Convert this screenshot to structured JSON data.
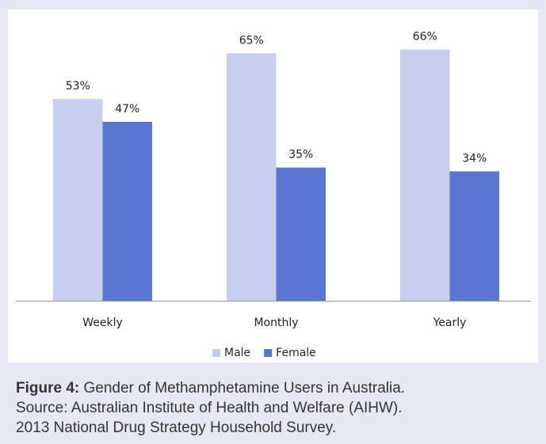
{
  "chart_data": {
    "type": "bar",
    "categories": [
      "Weekly",
      "Monthly",
      "Yearly"
    ],
    "series": [
      {
        "name": "Male",
        "color": "#c5cfee",
        "values": [
          53,
          65,
          66
        ],
        "value_labels": [
          "53%",
          "65%",
          "66%"
        ]
      },
      {
        "name": "Female",
        "color": "#5a76cf",
        "values": [
          47,
          35,
          34
        ],
        "value_labels": [
          "47%",
          "35%",
          "34%"
        ]
      }
    ],
    "legend": "bottom"
  },
  "caption": {
    "label": "Figure 4:",
    "lines": [
      "Gender of Methamphetamine Users in Australia.",
      "Source: Australian Institute of Health and Welfare (AIHW).",
      "2013 National Drug Strategy Household Survey."
    ]
  }
}
